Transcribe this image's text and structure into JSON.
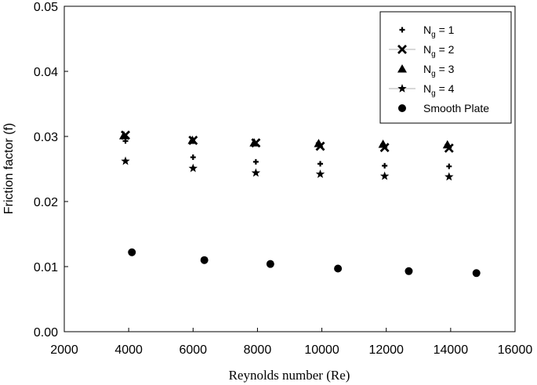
{
  "chart_data": {
    "type": "scatter",
    "xlabel": "Reynolds number (Re)",
    "ylabel": "Friction factor (f)",
    "xlim": [
      2000,
      16000
    ],
    "ylim": [
      0,
      0.05
    ],
    "x_ticks": [
      2000,
      4000,
      6000,
      8000,
      10000,
      12000,
      14000,
      16000
    ],
    "x_tick_labels": [
      "2000",
      "4000",
      "6000",
      "8000",
      "10000",
      "12000",
      "14000",
      "16000"
    ],
    "y_ticks": [
      0,
      0.01,
      0.02,
      0.03,
      0.04,
      0.05
    ],
    "y_tick_labels": [
      "0.00",
      "0.01",
      "0.02",
      "0.03",
      "0.04",
      "0.05"
    ],
    "grid": false,
    "legend_position": "top-right",
    "series": [
      {
        "name": "N_g = 1",
        "legend_main": "N",
        "legend_sub": "g",
        "legend_rest": " = 1",
        "marker": "plus",
        "x": [
          3900,
          6000,
          7950,
          9950,
          11950,
          13950
        ],
        "y": [
          0.0293,
          0.0268,
          0.0261,
          0.0258,
          0.0255,
          0.0254
        ]
      },
      {
        "name": "N_g = 2",
        "legend_main": "N",
        "legend_sub": "g",
        "legend_rest": " = 2",
        "marker": "x",
        "x": [
          3900,
          6000,
          7950,
          9950,
          11950,
          13950
        ],
        "y": [
          0.0302,
          0.0294,
          0.029,
          0.0285,
          0.0283,
          0.0282
        ]
      },
      {
        "name": "N_g = 3",
        "legend_main": "N",
        "legend_sub": "g",
        "legend_rest": " = 3",
        "marker": "triangle",
        "x": [
          3850,
          5980,
          7900,
          9900,
          11900,
          13900
        ],
        "y": [
          0.0301,
          0.0294,
          0.029,
          0.0289,
          0.0288,
          0.0287
        ]
      },
      {
        "name": "N_g = 4",
        "legend_main": "N",
        "legend_sub": "g",
        "legend_rest": " = 4",
        "marker": "star",
        "x": [
          3900,
          6000,
          7950,
          9950,
          11950,
          13950
        ],
        "y": [
          0.0262,
          0.0251,
          0.0244,
          0.0242,
          0.0239,
          0.0238
        ]
      },
      {
        "name": "Smooth Plate",
        "legend_main": "Smooth Plate",
        "legend_sub": "",
        "legend_rest": "",
        "marker": "circle",
        "x": [
          4100,
          6350,
          8400,
          10500,
          12700,
          14800
        ],
        "y": [
          0.0122,
          0.011,
          0.0104,
          0.0097,
          0.0093,
          0.009
        ]
      }
    ]
  }
}
